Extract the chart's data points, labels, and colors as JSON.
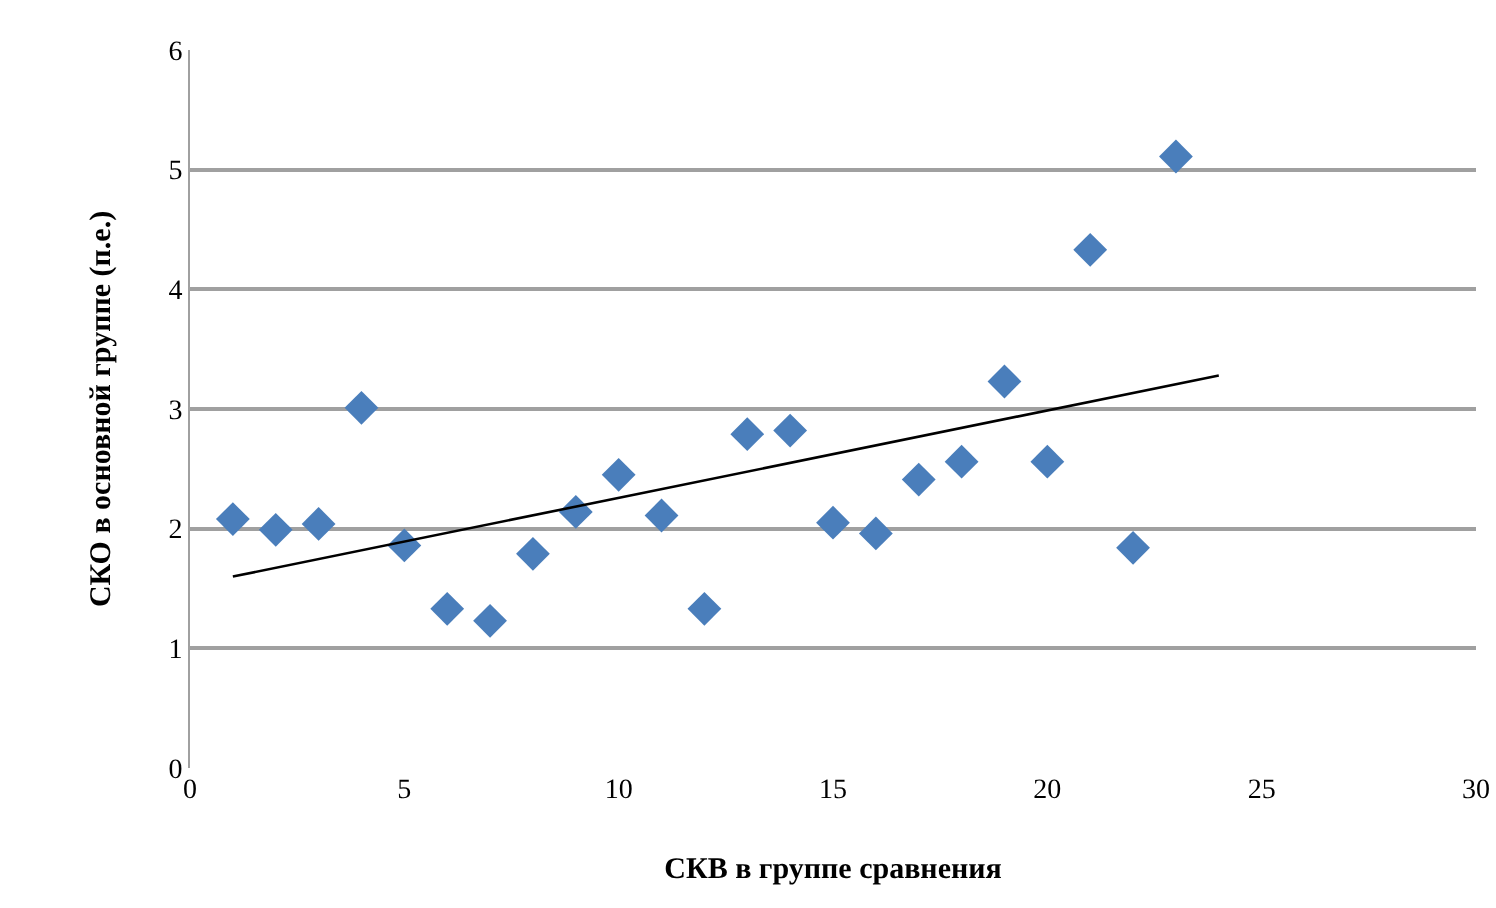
{
  "chart_data": {
    "type": "scatter",
    "xlabel": "СКВ в группе сравнения",
    "ylabel": "СКО в основной группе (п.е.)",
    "marker": "diamond",
    "grid": "y",
    "xlim": [
      0,
      30
    ],
    "xticks": [
      0,
      5,
      10,
      15,
      20,
      25,
      30
    ],
    "ylim": [
      0,
      6
    ],
    "yticks": [
      0,
      1,
      2,
      3,
      4,
      5,
      6
    ],
    "series": [
      {
        "color": "#4a7ebb",
        "x": [
          1,
          2,
          3,
          4,
          5,
          6,
          7,
          8,
          9,
          10,
          11,
          12,
          13,
          14,
          15,
          16,
          17,
          18,
          19,
          20,
          21,
          22,
          23
        ],
        "values": [
          2.08,
          1.99,
          2.04,
          3.01,
          1.86,
          1.33,
          1.23,
          1.79,
          2.14,
          2.45,
          2.11,
          1.33,
          2.79,
          2.82,
          2.05,
          1.96,
          2.41,
          2.56,
          3.23,
          2.56,
          4.33,
          1.84,
          5.11
        ]
      },
      {
        "type": "line",
        "marker": "none",
        "color": "#000000",
        "x": [
          1,
          24
        ],
        "values": [
          1.6,
          3.28
        ]
      }
    ]
  }
}
